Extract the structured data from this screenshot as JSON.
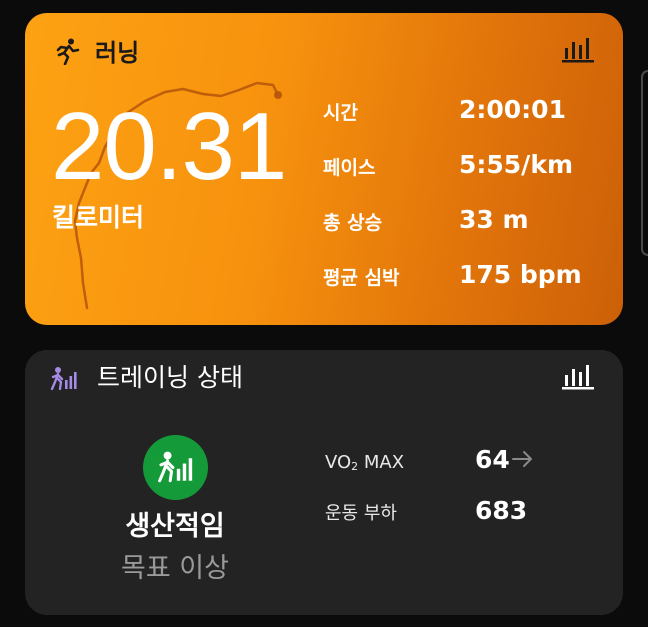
{
  "running": {
    "title": "러닝",
    "icon": "running-person-icon",
    "distance": "20.31",
    "distance_unit": "킬로미터",
    "stats": [
      {
        "label": "시간",
        "value": "2:00:01"
      },
      {
        "label": "페이스",
        "value": "5:55/km"
      },
      {
        "label": "총 상승",
        "value": "33 m"
      },
      {
        "label": "평균 심박",
        "value": "175 bpm"
      }
    ],
    "colors": {
      "card_start": "#fda213",
      "card_end": "#cc6008",
      "route": "#b5540a"
    }
  },
  "training": {
    "title": "트레이닝 상태",
    "icon": "training-status-icon",
    "status": "생산적임",
    "status_sub": "목표 이상",
    "metrics": [
      {
        "label": "VO",
        "label_sub": "2",
        "label_suffix": " MAX",
        "value": "64",
        "trend": "arrow-right-icon"
      },
      {
        "label": "운동 부하",
        "value": "683"
      }
    ],
    "colors": {
      "card": "#232323",
      "status_circle": "#159a3a",
      "accent": "#a58ae6"
    }
  }
}
